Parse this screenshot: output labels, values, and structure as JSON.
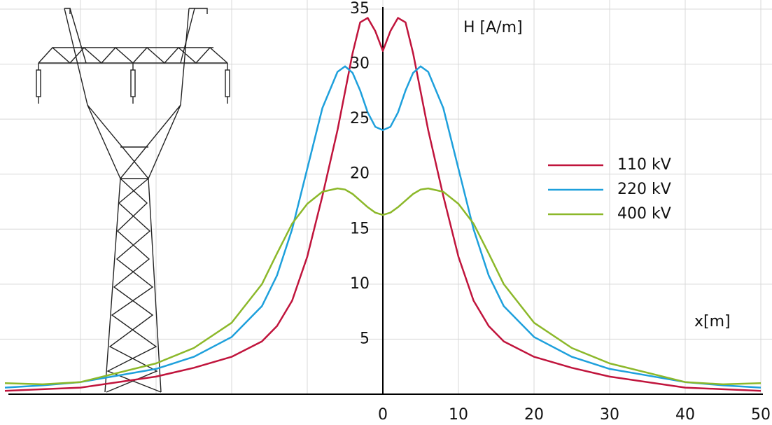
{
  "chart_data": {
    "type": "line",
    "y_axis_label": "H [A/m]",
    "x_axis_label": "x[m]",
    "x": [
      -50,
      -45,
      -40,
      -30,
      -25,
      -20,
      -16,
      -14,
      -12,
      -10,
      -8,
      -6,
      -5,
      -4,
      -3,
      -2,
      -1,
      0,
      1,
      2,
      3,
      4,
      5,
      6,
      8,
      10,
      12,
      14,
      16,
      20,
      25,
      30,
      40,
      45,
      50
    ],
    "series": [
      {
        "name": "110 kV",
        "color": "#c0143c",
        "values": [
          0.3,
          0.45,
          0.6,
          1.6,
          2.4,
          3.4,
          4.8,
          6.2,
          8.5,
          12.5,
          18,
          24,
          27.5,
          31,
          33.8,
          34.2,
          33,
          31.2,
          33,
          34.2,
          33.8,
          31,
          27.5,
          24,
          18,
          12.5,
          8.5,
          6.2,
          4.8,
          3.4,
          2.4,
          1.6,
          0.6,
          0.45,
          0.3
        ]
      },
      {
        "name": "220 kV",
        "color": "#1ea0dc",
        "values": [
          0.6,
          0.8,
          1.1,
          2.3,
          3.4,
          5.2,
          8,
          10.8,
          15,
          20.5,
          26,
          29.3,
          29.8,
          29.2,
          27.6,
          25.6,
          24.3,
          24,
          24.3,
          25.6,
          27.6,
          29.2,
          29.8,
          29.3,
          26,
          20.5,
          15,
          10.8,
          8,
          5.2,
          3.4,
          2.3,
          1.1,
          0.8,
          0.6
        ]
      },
      {
        "name": "400 kV",
        "color": "#8cb82a",
        "values": [
          1.0,
          0.9,
          1.1,
          2.8,
          4.2,
          6.5,
          10,
          12.8,
          15.5,
          17.3,
          18.4,
          18.7,
          18.6,
          18.2,
          17.6,
          17,
          16.5,
          16.3,
          16.5,
          17,
          17.6,
          18.2,
          18.6,
          18.7,
          18.4,
          17.3,
          15.5,
          12.8,
          10,
          6.5,
          4.2,
          2.8,
          1.1,
          0.9,
          1.0
        ]
      }
    ],
    "xlim": [
      -50,
      50
    ],
    "ylim": [
      0,
      35
    ],
    "xticks": [
      {
        "value": -40,
        "label": null
      },
      {
        "value": -30,
        "label": null
      },
      {
        "value": -20,
        "label": null
      },
      {
        "value": -10,
        "label": null
      },
      0,
      10,
      20,
      30,
      40,
      50
    ],
    "yticks": [
      5,
      10,
      15,
      20,
      25,
      30,
      35
    ],
    "grid": true,
    "legend": "right"
  }
}
